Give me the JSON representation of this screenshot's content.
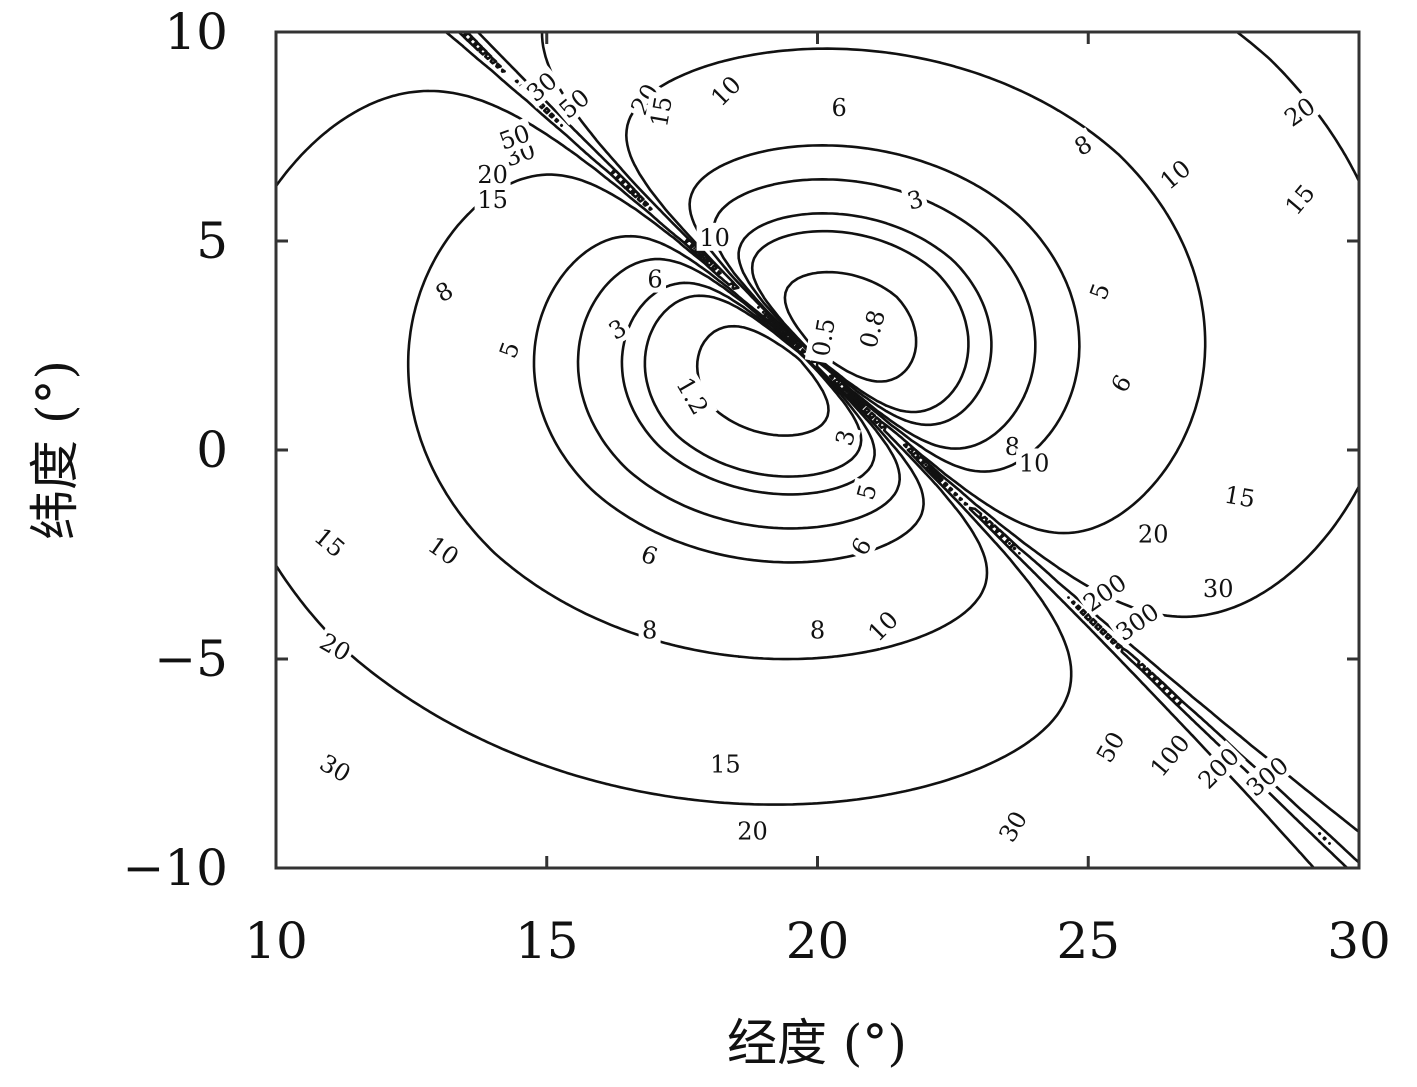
{
  "chart_data": {
    "type": "contour",
    "title": "",
    "xlabel": "经度 (°)",
    "ylabel": "纬度 (°)",
    "xlim": [
      10,
      30
    ],
    "ylim": [
      -10,
      10
    ],
    "xticks": [
      10,
      15,
      20,
      25,
      30
    ],
    "yticks": [
      -10,
      -5,
      0,
      5,
      10
    ],
    "xtick_labels": [
      "10",
      "15",
      "20",
      "25",
      "30"
    ],
    "ytick_labels": [
      "−10",
      "−5",
      "0",
      "5",
      "10"
    ],
    "grid": false,
    "legend": "none",
    "field": {
      "description_form": "dipole / two-lobe contour field",
      "center_min_label": [
        19.8,
        2.3
      ],
      "diagonal_singular_line": [
        [
          12.5,
          10
        ],
        [
          29,
          -10
        ]
      ]
    },
    "levels": [
      0.5,
      0.8,
      1.2,
      3,
      5,
      6,
      8,
      10,
      15,
      20,
      30,
      50,
      100,
      200,
      300
    ],
    "contour_labels": [
      {
        "text": "10",
        "x": 18.3,
        "y": 8.6,
        "rot": -45
      },
      {
        "text": "6",
        "x": 20.4,
        "y": 8.2,
        "rot": 0
      },
      {
        "text": "8",
        "x": 24.9,
        "y": 7.3,
        "rot": -30
      },
      {
        "text": "10",
        "x": 26.6,
        "y": 6.6,
        "rot": -40
      },
      {
        "text": "20",
        "x": 28.9,
        "y": 8.1,
        "rot": -35
      },
      {
        "text": "15",
        "x": 28.9,
        "y": 6.0,
        "rot": -50
      },
      {
        "text": "3",
        "x": 21.8,
        "y": 6.0,
        "rot": -15
      },
      {
        "text": "5",
        "x": 25.2,
        "y": 3.8,
        "rot": -70
      },
      {
        "text": "6",
        "x": 25.6,
        "y": 1.6,
        "rot": -60
      },
      {
        "text": "8",
        "x": 23.6,
        "y": 0.1,
        "rot": 0
      },
      {
        "text": "10",
        "x": 24.0,
        "y": -0.3,
        "rot": 0
      },
      {
        "text": "15",
        "x": 27.8,
        "y": -1.1,
        "rot": 10
      },
      {
        "text": "20",
        "x": 26.2,
        "y": -2.0,
        "rot": 0
      },
      {
        "text": "30",
        "x": 27.4,
        "y": -3.3,
        "rot": 0
      },
      {
        "text": "200",
        "x": 25.3,
        "y": -3.4,
        "rot": -35
      },
      {
        "text": "300",
        "x": 25.9,
        "y": -4.1,
        "rot": -35
      },
      {
        "text": "10",
        "x": 18.1,
        "y": 5.1,
        "rot": 0
      },
      {
        "text": "8",
        "x": 13.1,
        "y": 3.8,
        "rot": -30
      },
      {
        "text": "6",
        "x": 17.0,
        "y": 4.1,
        "rot": 0
      },
      {
        "text": "3",
        "x": 16.3,
        "y": 2.9,
        "rot": -30
      },
      {
        "text": "5",
        "x": 14.3,
        "y": 2.4,
        "rot": -70
      },
      {
        "text": "1.2",
        "x": 17.7,
        "y": 1.3,
        "rot": 60
      },
      {
        "text": "15",
        "x": 11.0,
        "y": -2.2,
        "rot": 40
      },
      {
        "text": "10",
        "x": 13.1,
        "y": -2.4,
        "rot": 35
      },
      {
        "text": "6",
        "x": 16.9,
        "y": -2.5,
        "rot": 20
      },
      {
        "text": "8",
        "x": 16.9,
        "y": -4.3,
        "rot": 0
      },
      {
        "text": "8",
        "x": 20.0,
        "y": -4.3,
        "rot": 0
      },
      {
        "text": "10",
        "x": 21.2,
        "y": -4.2,
        "rot": -45
      },
      {
        "text": "6",
        "x": 20.8,
        "y": -2.3,
        "rot": -60
      },
      {
        "text": "5",
        "x": 20.9,
        "y": -1.0,
        "rot": -75
      },
      {
        "text": "3",
        "x": 20.5,
        "y": 0.3,
        "rot": -75
      },
      {
        "text": "20",
        "x": 11.1,
        "y": -4.7,
        "rot": 30
      },
      {
        "text": "15",
        "x": 18.3,
        "y": -7.5,
        "rot": 0
      },
      {
        "text": "20",
        "x": 18.8,
        "y": -9.1,
        "rot": 0
      },
      {
        "text": "30",
        "x": 11.1,
        "y": -7.6,
        "rot": 30
      },
      {
        "text": "30",
        "x": 23.6,
        "y": -9.0,
        "rot": -60
      },
      {
        "text": "50",
        "x": 25.4,
        "y": -7.1,
        "rot": -60
      },
      {
        "text": "100",
        "x": 26.5,
        "y": -7.3,
        "rot": -50
      },
      {
        "text": "200",
        "x": 27.4,
        "y": -7.6,
        "rot": -45
      },
      {
        "text": "300",
        "x": 28.3,
        "y": -7.8,
        "rot": -40
      },
      {
        "text": "15",
        "x": 14.0,
        "y": 6.0,
        "rot": 0
      },
      {
        "text": "20",
        "x": 14.0,
        "y": 6.6,
        "rot": 0
      },
      {
        "text": "30",
        "x": 14.5,
        "y": 7.1,
        "rot": -20
      },
      {
        "text": "50",
        "x": 14.4,
        "y": 7.5,
        "rot": -20
      },
      {
        "text": "30",
        "x": 14.9,
        "y": 8.7,
        "rot": -40
      },
      {
        "text": "50",
        "x": 15.5,
        "y": 8.3,
        "rot": -40
      },
      {
        "text": "20",
        "x": 16.8,
        "y": 8.4,
        "rot": -60
      },
      {
        "text": "15",
        "x": 17.1,
        "y": 8.1,
        "rot": -80
      },
      {
        "text": "0.5",
        "x": 20.1,
        "y": 2.7,
        "rot": -80
      },
      {
        "text": "0.8",
        "x": 21.0,
        "y": 2.9,
        "rot": -75
      }
    ]
  }
}
